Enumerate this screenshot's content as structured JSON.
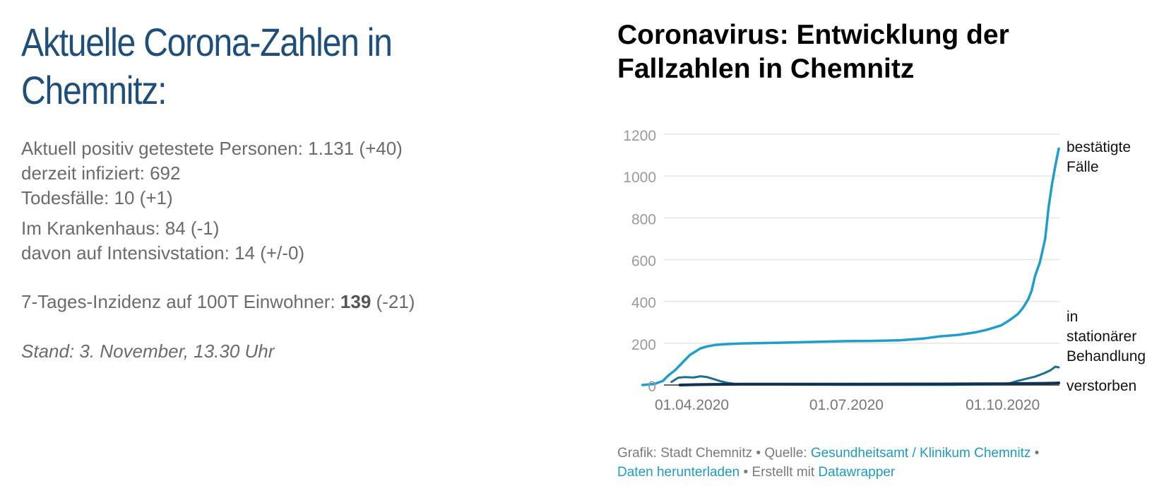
{
  "left": {
    "headline_line1": "Aktuelle Corona-Zahlen in",
    "headline_line2": "Chemnitz:",
    "stats": {
      "positive": "Aktuell positiv getestete Personen: 1.131 (+40)",
      "infected": "derzeit infiziert: 692",
      "deaths": "Todesfälle: 10 (+1)",
      "hospital": "Im Krankenhaus: 84 (-1)",
      "icu": "davon auf Intensivstation: 14 (+/-0)",
      "incidence_prefix": "7-Tages-Inzidenz auf 100T Einwohner: ",
      "incidence_value": "139",
      "incidence_suffix": " (-21)"
    },
    "stand": "Stand: 3. November, 13.30 Uhr"
  },
  "chart": {
    "title_line1": "Coronavirus: Entwicklung der",
    "title_line2": "Fallzahlen in Chemnitz",
    "footer": {
      "grafik": "Grafik: Stadt Chemnitz",
      "sep1": " • ",
      "quelle": "Quelle: ",
      "quelle_link": "Gesundheitsamt / Klinikum Chemnitz",
      "sep2": " •",
      "download_link": "Daten herunterladen",
      "sep3": " • ",
      "erstellt": "Erstellt mit ",
      "datawrapper_link": "Datawrapper"
    }
  },
  "colors": {
    "headline": "#1e4f7b",
    "confirmed": "#1f9ec9",
    "hospital": "#1d6f8f",
    "deaths": "#0f3350",
    "grid": "#e4e4e4",
    "tick": "#9a9a9a",
    "link": "#1d9bc3"
  },
  "chart_data": {
    "type": "line",
    "title": "Coronavirus: Entwicklung der Fallzahlen in Chemnitz",
    "xlabel": "",
    "ylabel": "",
    "x_type": "date",
    "xlim": [
      "2020-03-01",
      "2020-11-03"
    ],
    "ylim": [
      0,
      1200
    ],
    "y_ticks": [
      0,
      200,
      400,
      600,
      800,
      1000,
      1200
    ],
    "y_tick_labels": [
      "0",
      "200",
      "400",
      "600",
      "800",
      "1000",
      "1200"
    ],
    "x_ticks": [
      "2020-04-01",
      "2020-07-01",
      "2020-10-01"
    ],
    "x_tick_labels": [
      "01.04.2020",
      "01.07.2020",
      "01.10.2020"
    ],
    "grid": true,
    "legend": "direct labels at line ends (right)",
    "series": [
      {
        "name_lines": [
          "bestätigte",
          "Fälle"
        ],
        "key": "confirmed",
        "points": [
          [
            "2020-03-03",
            0
          ],
          [
            "2020-03-10",
            5
          ],
          [
            "2020-03-15",
            20
          ],
          [
            "2020-03-18",
            45
          ],
          [
            "2020-03-22",
            70
          ],
          [
            "2020-03-25",
            95
          ],
          [
            "2020-03-28",
            120
          ],
          [
            "2020-03-31",
            145
          ],
          [
            "2020-04-03",
            160
          ],
          [
            "2020-04-06",
            175
          ],
          [
            "2020-04-10",
            185
          ],
          [
            "2020-04-15",
            192
          ],
          [
            "2020-04-22",
            196
          ],
          [
            "2020-05-01",
            199
          ],
          [
            "2020-05-15",
            201
          ],
          [
            "2020-06-01",
            204
          ],
          [
            "2020-06-15",
            207
          ],
          [
            "2020-07-01",
            210
          ],
          [
            "2020-07-15",
            211
          ],
          [
            "2020-08-01",
            214
          ],
          [
            "2020-08-15",
            222
          ],
          [
            "2020-08-25",
            233
          ],
          [
            "2020-09-05",
            240
          ],
          [
            "2020-09-15",
            252
          ],
          [
            "2020-09-22",
            265
          ],
          [
            "2020-09-30",
            285
          ],
          [
            "2020-10-05",
            310
          ],
          [
            "2020-10-10",
            340
          ],
          [
            "2020-10-13",
            370
          ],
          [
            "2020-10-16",
            410
          ],
          [
            "2020-10-18",
            450
          ],
          [
            "2020-10-20",
            520
          ],
          [
            "2020-10-23",
            590
          ],
          [
            "2020-10-26",
            700
          ],
          [
            "2020-10-28",
            850
          ],
          [
            "2020-10-30",
            960
          ],
          [
            "2020-11-01",
            1050
          ],
          [
            "2020-11-03",
            1131
          ]
        ]
      },
      {
        "name_lines": [
          "in",
          "stationärer",
          "Behandlung"
        ],
        "key": "hospital",
        "points": [
          [
            "2020-03-20",
            15
          ],
          [
            "2020-03-24",
            35
          ],
          [
            "2020-03-28",
            38
          ],
          [
            "2020-04-02",
            36
          ],
          [
            "2020-04-06",
            42
          ],
          [
            "2020-04-10",
            38
          ],
          [
            "2020-04-14",
            28
          ],
          [
            "2020-04-18",
            18
          ],
          [
            "2020-04-22",
            10
          ],
          [
            "2020-04-26",
            6
          ],
          [
            "2020-05-01",
            4
          ],
          [
            "2020-05-15",
            3
          ],
          [
            "2020-06-01",
            2
          ],
          [
            "2020-07-01",
            1
          ],
          [
            "2020-08-01",
            1
          ],
          [
            "2020-09-01",
            1
          ],
          [
            "2020-09-30",
            3
          ],
          [
            "2020-10-05",
            8
          ],
          [
            "2020-10-10",
            20
          ],
          [
            "2020-10-15",
            30
          ],
          [
            "2020-10-20",
            40
          ],
          [
            "2020-10-25",
            55
          ],
          [
            "2020-10-29",
            70
          ],
          [
            "2020-11-01",
            88
          ],
          [
            "2020-11-03",
            84
          ]
        ]
      },
      {
        "name_lines": [
          "verstorben"
        ],
        "key": "deaths",
        "points": [
          [
            "2020-03-25",
            0
          ],
          [
            "2020-04-05",
            2
          ],
          [
            "2020-04-15",
            3
          ],
          [
            "2020-05-01",
            4
          ],
          [
            "2020-07-01",
            4
          ],
          [
            "2020-09-01",
            5
          ],
          [
            "2020-10-01",
            6
          ],
          [
            "2020-10-15",
            7
          ],
          [
            "2020-10-25",
            8
          ],
          [
            "2020-11-01",
            9
          ],
          [
            "2020-11-03",
            10
          ]
        ]
      }
    ]
  }
}
